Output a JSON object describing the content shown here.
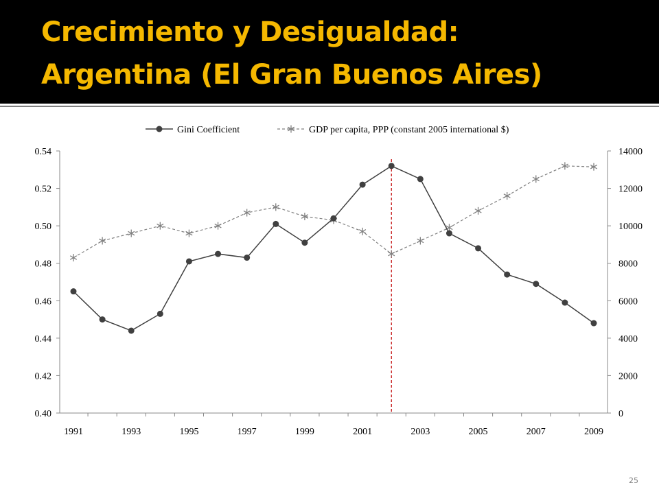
{
  "slide": {
    "title_line1": "Crecimiento y Desigualdad:",
    "title_line2": "Argentina (El Gran Buenos Aires)",
    "slide_number": "25",
    "colors": {
      "title_bg": "#000000",
      "title_text": "#f5b800",
      "gini_series": "#404040",
      "gdp_series": "#808080",
      "marker_line": "#c00000"
    }
  },
  "chart_data": {
    "type": "line",
    "legend_position": "top",
    "grid": false,
    "x": [
      1991,
      1992,
      1993,
      1994,
      1995,
      1996,
      1997,
      1998,
      1999,
      2000,
      2001,
      2002,
      2003,
      2004,
      2005,
      2006,
      2007,
      2008,
      2009
    ],
    "x_tick_labels": [
      "1991",
      "1993",
      "1995",
      "1997",
      "1999",
      "2001",
      "2003",
      "2005",
      "2007",
      "2009"
    ],
    "y_left": {
      "ylim": [
        0.4,
        0.54
      ],
      "tick_labels": [
        "0.40",
        "0.42",
        "0.44",
        "0.46",
        "0.48",
        "0.50",
        "0.52",
        "0.54"
      ]
    },
    "y_right": {
      "ylim": [
        0,
        14000
      ],
      "tick_labels": [
        "0",
        "2000",
        "4000",
        "6000",
        "8000",
        "10000",
        "12000",
        "14000"
      ]
    },
    "series": [
      {
        "name": "Gini Coefficient",
        "axis": "left",
        "style": "solid-dot",
        "values": [
          0.465,
          0.45,
          0.444,
          0.453,
          0.481,
          0.485,
          0.483,
          0.501,
          0.491,
          0.504,
          0.522,
          0.532,
          0.525,
          0.496,
          0.488,
          0.474,
          0.469,
          0.459,
          0.448
        ]
      },
      {
        "name": "GDP per capita, PPP (constant 2005 international $)",
        "axis": "right",
        "style": "dashed-star",
        "values": [
          8300,
          9200,
          9600,
          10000,
          9600,
          10000,
          10700,
          11000,
          10500,
          10300,
          9700,
          8500,
          9200,
          9900,
          10800,
          11600,
          12500,
          13200,
          13150
        ]
      }
    ],
    "reference_line": {
      "x": 2002,
      "style": "dashed"
    }
  }
}
